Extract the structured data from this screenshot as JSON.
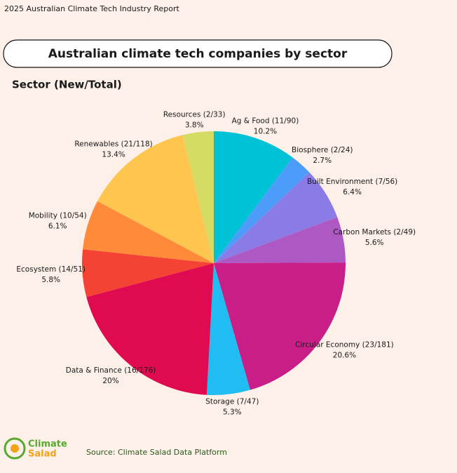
{
  "header": "2025 Australian Climate Tech Industry Report",
  "chart_data": {
    "type": "pie",
    "title": "Australian climate tech companies by sector",
    "subtitle": "Sector (New/Total)",
    "categories": [
      "Ag & Food (11/90)",
      "Biosphere (2/24)",
      "Built Environment (7/56)",
      "Carbon Markets (2/49)",
      "Circular Economy (23/181)",
      "Storage (7/47)",
      "Data & Finance (16/176)",
      "Ecosystem (14/51)",
      "Mobility (10/54)",
      "Renewables (21/118)",
      "Resources (2/33)"
    ],
    "values": [
      10.2,
      2.7,
      6.4,
      5.6,
      20.6,
      5.3,
      20,
      5.8,
      6.1,
      13.4,
      3.8
    ],
    "value_labels": [
      "10.2%",
      "2.7%",
      "6.4%",
      "5.6%",
      "20.6%",
      "5.3%",
      "20%",
      "5.8%",
      "6.1%",
      "13.4%",
      "3.8%"
    ],
    "colors": [
      "#00c2d6",
      "#4d9cfa",
      "#8b7be6",
      "#ae58c4",
      "#c91d88",
      "#21bdf2",
      "#df0a4f",
      "#f44234",
      "#ff8a3a",
      "#ffc64f",
      "#d5dc63"
    ]
  },
  "logo": {
    "line1": "Climate",
    "line2": "Salad"
  },
  "source": "Source:  Climate Salad Data Platform"
}
